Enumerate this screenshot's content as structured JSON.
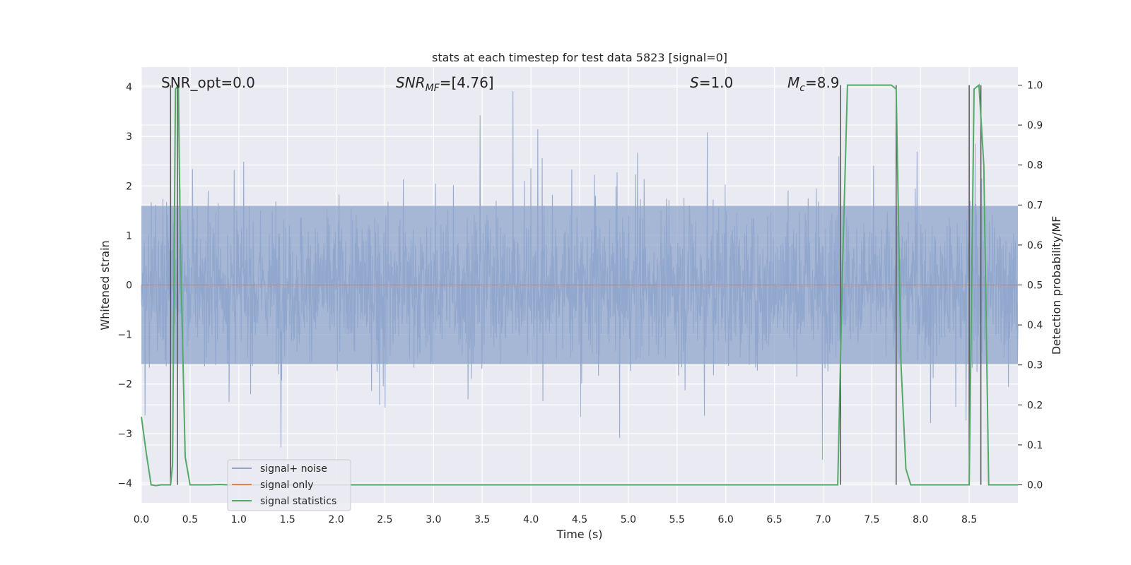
{
  "chart_data": {
    "type": "line",
    "title": "stats at each timestep for test data 5823 [signal=0]",
    "xlabel": "Time (s)",
    "ylabel_left": "Whitened strain",
    "ylabel_right": "Detection probability/MF",
    "xlim": [
      0.0,
      9.0
    ],
    "ylim_left": [
      -4.4,
      4.4
    ],
    "ylim_right": [
      -0.045,
      1.045
    ],
    "x_ticks": [
      "0.0",
      "0.5",
      "1.0",
      "1.5",
      "2.0",
      "2.5",
      "3.0",
      "3.5",
      "4.0",
      "4.5",
      "5.0",
      "5.5",
      "6.0",
      "6.5",
      "7.0",
      "7.5",
      "8.0",
      "8.5"
    ],
    "y_ticks_left": [
      "−4",
      "−3",
      "−2",
      "−1",
      "0",
      "1",
      "2",
      "3",
      "4"
    ],
    "y_ticks_right": [
      "0.0",
      "0.1",
      "0.2",
      "0.3",
      "0.4",
      "0.5",
      "0.6",
      "0.7",
      "0.8",
      "0.9",
      "1.0"
    ],
    "grid": true,
    "legend_position": "lower-left",
    "annotations": {
      "snr_opt": "SNR_opt=0.0",
      "snr_mf_prefix": "SNR",
      "snr_mf_sub": "MF",
      "snr_mf_value": "=[4.76]",
      "s_label": "S",
      "s_value": "=1.0",
      "mc_label": "M",
      "mc_sub": "c",
      "mc_value": "=8.9"
    },
    "series": [
      {
        "name": "signal+ noise",
        "color": "#8fa5cc",
        "description_level": "noise band approx ±1.6 with spikes to ±4"
      },
      {
        "name": "signal only",
        "color": "#dd8452",
        "values_constant": 0.0
      },
      {
        "name": "signal statistics",
        "color": "#55a868",
        "x": [
          0.0,
          0.05,
          0.1,
          0.15,
          0.2,
          0.25,
          0.3,
          0.32,
          0.35,
          0.38,
          0.4,
          0.45,
          0.5,
          0.6,
          0.7,
          0.8,
          0.9,
          1.0,
          7.1,
          7.15,
          7.2,
          7.25,
          7.3,
          7.4,
          7.5,
          7.6,
          7.7,
          7.75,
          7.8,
          7.85,
          7.9,
          8.0,
          8.5,
          8.55,
          8.6,
          8.65,
          8.7,
          8.75,
          8.8,
          8.9,
          9.0
        ],
        "y": [
          0.17,
          0.08,
          0.0,
          -0.002,
          0.0,
          0.0,
          0.0,
          0.05,
          0.99,
          1.0,
          0.6,
          0.07,
          0.0,
          0.0,
          0.0,
          0.001,
          0.0,
          0.0,
          0.0,
          0.0,
          0.55,
          1.0,
          1.0,
          1.0,
          1.0,
          1.0,
          1.0,
          0.99,
          0.3,
          0.04,
          0.0,
          0.0,
          0.0,
          0.99,
          1.0,
          0.8,
          0.0,
          0.0,
          0.0,
          0.0,
          0.0
        ]
      }
    ],
    "vertical_markers": [
      0.3,
      0.37,
      7.18,
      7.75,
      8.5,
      8.62
    ]
  }
}
